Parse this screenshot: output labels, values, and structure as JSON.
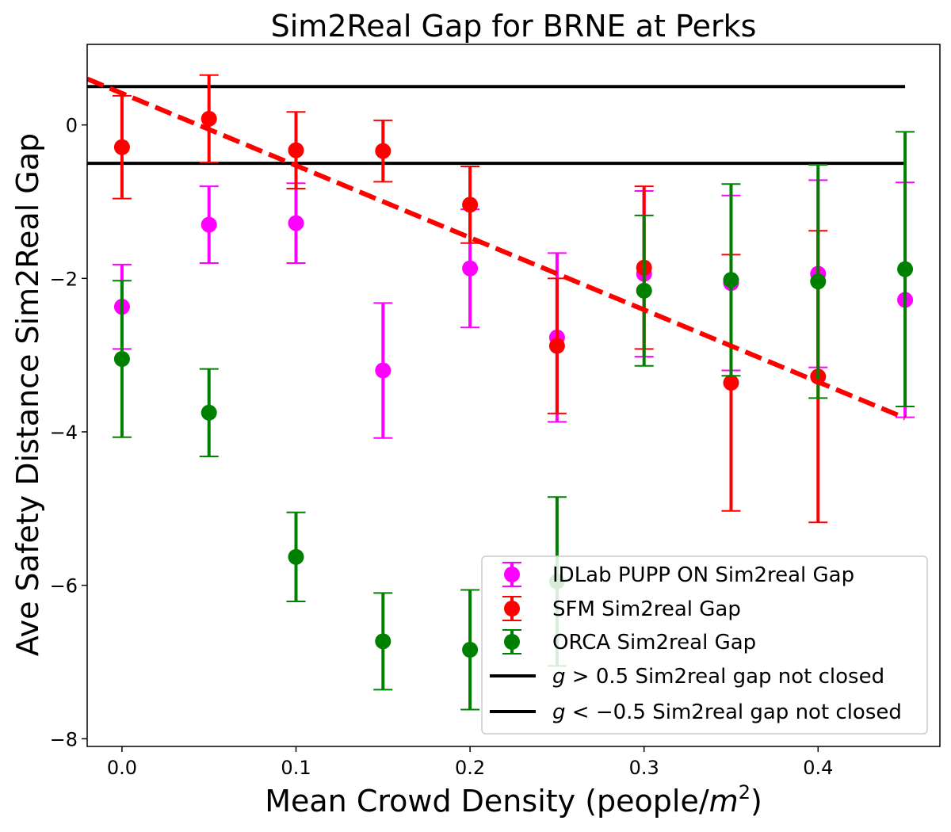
{
  "chart_data": {
    "type": "scatter",
    "title": "Sim2Real Gap for BRNE at Perks",
    "xlabel": "Mean Crowd Density (people/m²)",
    "xlabel_parts": {
      "prefix": "Mean Crowd Density (people/",
      "var": "m",
      "sup": "2",
      "suffix": ")"
    },
    "ylabel": "Ave Safety Distance Sim2Real Gap",
    "xlim": [
      -0.02,
      0.47
    ],
    "ylim": [
      -8.1,
      1.05
    ],
    "xticks": [
      0.0,
      0.1,
      0.2,
      0.3,
      0.4
    ],
    "xtick_labels": [
      "0.0",
      "0.1",
      "0.2",
      "0.3",
      "0.4"
    ],
    "yticks": [
      0,
      -2,
      -4,
      -6,
      -8
    ],
    "ytick_labels": [
      "0",
      "−2",
      "−4",
      "−6",
      "−8"
    ],
    "grid": false,
    "legend_position": "lower-right",
    "x": [
      0.0,
      0.05,
      0.1,
      0.15,
      0.2,
      0.25,
      0.3,
      0.35,
      0.4,
      0.45
    ],
    "series": [
      {
        "name": "IDLab PUPP ON Sim2real Gap",
        "color": "#ff00ff",
        "y": [
          -2.37,
          -1.3,
          -1.28,
          -3.2,
          -1.87,
          -2.77,
          -1.94,
          -2.06,
          -1.94,
          -2.28
        ],
        "err": [
          0.55,
          0.5,
          0.52,
          0.88,
          0.77,
          1.1,
          1.08,
          1.14,
          1.22,
          1.53
        ]
      },
      {
        "name": "SFM Sim2real Gap",
        "color": "#ff0000",
        "y": [
          -0.29,
          0.08,
          -0.33,
          -0.34,
          -1.04,
          -2.88,
          -1.86,
          -3.36,
          -3.28,
          null
        ],
        "err": [
          0.67,
          0.57,
          0.5,
          0.4,
          0.5,
          0.88,
          1.06,
          1.67,
          1.9,
          null
        ]
      },
      {
        "name": "ORCA Sim2real Gap",
        "color": "#008000",
        "y": [
          -3.05,
          -3.75,
          -5.63,
          -6.73,
          -6.84,
          -5.95,
          -2.16,
          -2.02,
          -2.04,
          -1.88
        ],
        "err": [
          1.02,
          0.57,
          0.58,
          0.63,
          0.78,
          1.1,
          0.98,
          1.25,
          1.52,
          1.79
        ]
      }
    ],
    "fit_line": {
      "color": "#ff0000",
      "style": "dashed",
      "x": [
        -0.02,
        0.45
      ],
      "y": [
        0.6,
        -3.82
      ]
    },
    "threshold_lines": [
      {
        "name_var": "g",
        "name_rest": " > 0.5 Sim2real gap not closed",
        "y": 0.5,
        "x": [
          -0.02,
          0.45
        ],
        "color": "#000000"
      },
      {
        "name_var": "g",
        "name_rest": " < −0.5 Sim2real gap not closed",
        "y": -0.5,
        "x": [
          -0.02,
          0.45
        ],
        "color": "#000000"
      }
    ]
  }
}
